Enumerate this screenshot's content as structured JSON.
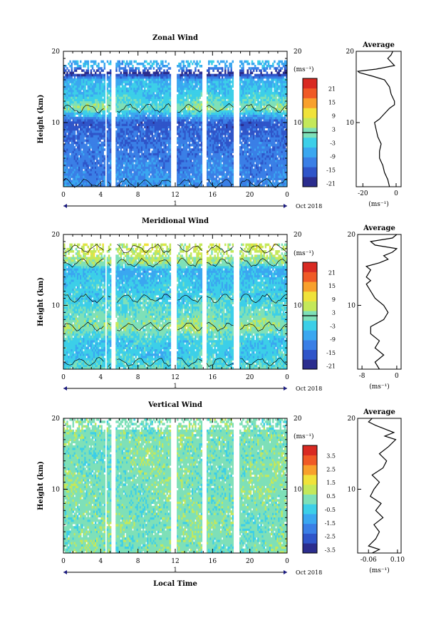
{
  "figure": {
    "date_label": "Oct 2018",
    "day_label": "1",
    "xlabel": "Local Time",
    "ylabel": "Height (km)",
    "unit_label": "(ms⁻¹)"
  },
  "colors": {
    "scale": [
      "#2b2d8e",
      "#2f55c9",
      "#3a7fe6",
      "#3aa7f0",
      "#3ccfe8",
      "#7ee0b8",
      "#c4e85a",
      "#f0e23a",
      "#f8a02c",
      "#f05a26",
      "#d92a22"
    ],
    "contour": "#000000",
    "frame": "#000000"
  },
  "chart_data": [
    {
      "type": "heatmap",
      "title": "Zonal Wind",
      "x_ticks": [
        "0",
        "4",
        "8",
        "12",
        "16",
        "20",
        "0"
      ],
      "xlim": [
        0,
        24
      ],
      "y_ticks": [
        "20",
        "10"
      ],
      "ylim": [
        1,
        20
      ],
      "colorbar": {
        "labels": [
          "21",
          "15",
          "9",
          "3",
          "-3",
          "-9",
          "-15",
          "-21"
        ],
        "range": [
          -24,
          24
        ],
        "zero_line": 0
      },
      "data_gaps_hours": [
        [
          4.4,
          4.7
        ],
        [
          5.2,
          5.6
        ],
        [
          11.6,
          12.1
        ],
        [
          14.9,
          15.3
        ],
        [
          18.3,
          18.8
        ]
      ],
      "profile_rows": [
        {
          "height_km": 1,
          "values": [
            -9,
            -12,
            -12,
            -9,
            -9,
            -12,
            -12,
            -12,
            -9
          ]
        },
        {
          "height_km": 4,
          "values": [
            -12,
            -15,
            -12,
            -12,
            -15,
            -12,
            -12,
            -15,
            -12
          ]
        },
        {
          "height_km": 7,
          "values": [
            -15,
            -12,
            -15,
            -15,
            -12,
            -15,
            -15,
            -12,
            -15
          ]
        },
        {
          "height_km": 10,
          "values": [
            -18,
            -18,
            -15,
            -18,
            -18,
            -15,
            -18,
            -18,
            -15
          ]
        },
        {
          "height_km": 12,
          "values": [
            0,
            3,
            0,
            -3,
            0,
            3,
            0,
            0,
            3
          ]
        },
        {
          "height_km": 14,
          "values": [
            -6,
            -6,
            -3,
            -6,
            -6,
            -3,
            -6,
            -3,
            -6
          ]
        },
        {
          "height_km": 16,
          "values": [
            -9,
            -6,
            -9,
            -6,
            -9,
            -9,
            -6,
            -9,
            -6
          ]
        },
        {
          "height_km": 17,
          "values": [
            -24,
            -24,
            -21,
            -24,
            -21,
            -24,
            -24,
            -21,
            -24
          ]
        },
        {
          "height_km": 18,
          "values": [
            -9,
            -6,
            -9,
            -6,
            -9,
            -6,
            -9,
            -6,
            -9
          ]
        }
      ],
      "valid_top_km": 18,
      "average": {
        "title": "Average",
        "x_ticks": [
          "-20",
          "0"
        ],
        "xlim": [
          -24,
          3
        ],
        "y_ticks": [
          "20",
          "10"
        ],
        "x_unit_label": "(ms⁻¹)",
        "profile": [
          [
            1,
            -4
          ],
          [
            2,
            -5
          ],
          [
            3,
            -7
          ],
          [
            4,
            -8
          ],
          [
            5,
            -10
          ],
          [
            6,
            -10
          ],
          [
            7,
            -9
          ],
          [
            8,
            -11
          ],
          [
            9,
            -12
          ],
          [
            10,
            -13
          ],
          [
            10.5,
            -10
          ],
          [
            11,
            -8
          ],
          [
            12,
            -4
          ],
          [
            12.5,
            -1
          ],
          [
            13,
            -1
          ],
          [
            13.5,
            -2
          ],
          [
            14,
            -3
          ],
          [
            15,
            -4
          ],
          [
            16,
            -7
          ],
          [
            16.5,
            -14
          ],
          [
            17,
            -22
          ],
          [
            17.2,
            -23
          ],
          [
            17.5,
            -12
          ],
          [
            18,
            -1
          ],
          [
            18.5,
            -3
          ],
          [
            19,
            -5
          ],
          [
            19.5,
            -3
          ],
          [
            20,
            -2
          ]
        ]
      }
    },
    {
      "type": "heatmap",
      "title": "Meridional Wind",
      "x_ticks": [
        "0",
        "4",
        "8",
        "12",
        "16",
        "20",
        "0"
      ],
      "xlim": [
        0,
        24
      ],
      "y_ticks": [
        "20",
        "10"
      ],
      "ylim": [
        1,
        20
      ],
      "colorbar": {
        "labels": [
          "21",
          "15",
          "9",
          "3",
          "-3",
          "-9",
          "-15",
          "-21"
        ],
        "range": [
          -24,
          24
        ],
        "zero_line": 0
      },
      "data_gaps_hours": [
        [
          4.4,
          4.7
        ],
        [
          5.2,
          5.6
        ],
        [
          11.6,
          12.1
        ],
        [
          14.9,
          15.3
        ],
        [
          18.3,
          18.8
        ]
      ],
      "profile_rows": [
        {
          "height_km": 1,
          "values": [
            -3,
            0,
            -3,
            0,
            -3,
            0,
            -3,
            0,
            -3
          ]
        },
        {
          "height_km": 3,
          "values": [
            -6,
            -6,
            -3,
            -6,
            -6,
            -3,
            -6,
            -6,
            -3
          ]
        },
        {
          "height_km": 5,
          "values": [
            -3,
            -6,
            -6,
            -3,
            -6,
            -3,
            -3,
            -6,
            -6
          ]
        },
        {
          "height_km": 7,
          "values": [
            3,
            0,
            3,
            0,
            3,
            3,
            0,
            3,
            0
          ]
        },
        {
          "height_km": 9,
          "values": [
            -3,
            0,
            -3,
            0,
            -3,
            0,
            -3,
            0,
            -3
          ]
        },
        {
          "height_km": 11,
          "values": [
            -3,
            -6,
            -3,
            -3,
            -6,
            -3,
            -3,
            -6,
            -3
          ]
        },
        {
          "height_km": 13,
          "values": [
            -6,
            -3,
            -6,
            -6,
            -3,
            -6,
            -6,
            -3,
            -6
          ]
        },
        {
          "height_km": 15,
          "values": [
            -9,
            -6,
            -9,
            -9,
            -6,
            -9,
            -6,
            -9,
            -9
          ]
        },
        {
          "height_km": 16,
          "values": [
            0,
            3,
            0,
            3,
            0,
            3,
            0,
            0,
            3
          ]
        },
        {
          "height_km": 18,
          "values": [
            3,
            6,
            3,
            6,
            3,
            6,
            3,
            6,
            3
          ]
        }
      ],
      "valid_top_km": 18,
      "average": {
        "title": "Average",
        "x_ticks": [
          "-8",
          "0"
        ],
        "xlim": [
          -9,
          1
        ],
        "y_ticks": [
          "20",
          "10"
        ],
        "x_unit_label": "(ms⁻¹)",
        "profile": [
          [
            1,
            -4
          ],
          [
            2,
            -5
          ],
          [
            3,
            -3
          ],
          [
            4,
            -5
          ],
          [
            5,
            -4
          ],
          [
            6,
            -6
          ],
          [
            7,
            -6
          ],
          [
            8,
            -3
          ],
          [
            9,
            -2
          ],
          [
            10,
            -3
          ],
          [
            11,
            -5
          ],
          [
            12,
            -6
          ],
          [
            13,
            -7
          ],
          [
            13.5,
            -6
          ],
          [
            14,
            -7
          ],
          [
            15,
            -6
          ],
          [
            15.5,
            -7
          ],
          [
            16,
            -4
          ],
          [
            16.5,
            -2
          ],
          [
            17,
            -3
          ],
          [
            17.5,
            -1
          ],
          [
            18,
            0
          ],
          [
            18.5,
            -5
          ],
          [
            19,
            -6
          ],
          [
            19.5,
            -1
          ],
          [
            20,
            0
          ]
        ]
      }
    },
    {
      "type": "heatmap",
      "title": "Vertical Wind",
      "x_ticks": [
        "0",
        "4",
        "8",
        "12",
        "16",
        "20",
        "0"
      ],
      "xlim": [
        0,
        24
      ],
      "y_ticks": [
        "20",
        "10"
      ],
      "ylim": [
        1,
        20
      ],
      "colorbar": {
        "labels": [
          "3.5",
          "2.5",
          "1.5",
          "0.5",
          "-0.5",
          "-1.5",
          "-2.5",
          "-3.5"
        ],
        "range": [
          -4,
          4
        ],
        "zero_line": null
      },
      "data_gaps_hours": [
        [
          4.4,
          4.7
        ],
        [
          5.2,
          5.6
        ],
        [
          11.6,
          12.1
        ],
        [
          14.9,
          15.3
        ],
        [
          18.3,
          18.8
        ]
      ],
      "profile_rows": [
        {
          "height_km": 1,
          "values": [
            0,
            0.2,
            -0.2,
            0,
            0.2,
            0,
            -0.2,
            0,
            0.2
          ]
        },
        {
          "height_km": 5,
          "values": [
            -0.2,
            0,
            0.2,
            -0.2,
            0,
            0.2,
            0,
            -0.2,
            0
          ]
        },
        {
          "height_km": 10,
          "values": [
            0.2,
            0,
            -0.2,
            0,
            0.2,
            -0.2,
            0,
            0.2,
            0
          ]
        },
        {
          "height_km": 15,
          "values": [
            0,
            -0.2,
            0,
            0.2,
            0,
            0,
            -0.2,
            0,
            0.2
          ]
        },
        {
          "height_km": 19,
          "values": [
            0.2,
            0,
            0,
            -0.2,
            0.2,
            0,
            0.2,
            0,
            -0.2
          ]
        }
      ],
      "valid_top_km": 19.5,
      "average": {
        "title": "Average",
        "x_ticks": [
          "-0.06",
          "0.10"
        ],
        "xlim": [
          -0.12,
          0.12
        ],
        "y_ticks": [
          "20",
          "10"
        ],
        "x_unit_label": "(ms⁻¹)",
        "profile": [
          [
            1,
            -0.04
          ],
          [
            1.5,
            0.0
          ],
          [
            2,
            -0.06
          ],
          [
            3,
            -0.02
          ],
          [
            4,
            0.0
          ],
          [
            5,
            -0.03
          ],
          [
            6,
            0.02
          ],
          [
            7,
            -0.02
          ],
          [
            8,
            0.01
          ],
          [
            9,
            -0.05
          ],
          [
            10,
            -0.03
          ],
          [
            11,
            0.0
          ],
          [
            12,
            -0.04
          ],
          [
            13,
            0.02
          ],
          [
            14,
            0.04
          ],
          [
            15,
            0.0
          ],
          [
            16,
            0.05
          ],
          [
            17,
            0.09
          ],
          [
            17.5,
            0.03
          ],
          [
            18,
            0.08
          ],
          [
            19,
            -0.02
          ],
          [
            19.5,
            -0.06
          ],
          [
            20,
            -0.04
          ]
        ]
      }
    }
  ]
}
